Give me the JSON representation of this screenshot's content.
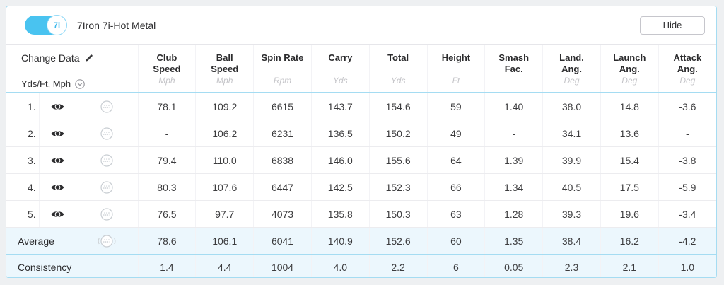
{
  "header": {
    "club_label": "7i",
    "title": "7Iron 7i-Hot Metal",
    "hide_button": "Hide"
  },
  "table": {
    "change_data_label": "Change Data",
    "units_label": "Yds/Ft, Mph",
    "columns": [
      {
        "label": "Club\nSpeed",
        "unit": "Mph"
      },
      {
        "label": "Ball\nSpeed",
        "unit": "Mph"
      },
      {
        "label": "Spin Rate",
        "unit": "Rpm"
      },
      {
        "label": "Carry",
        "unit": "Yds"
      },
      {
        "label": "Total",
        "unit": "Yds"
      },
      {
        "label": "Height",
        "unit": "Ft"
      },
      {
        "label": "Smash\nFac.",
        "unit": ""
      },
      {
        "label": "Land.\nAng.",
        "unit": "Deg"
      },
      {
        "label": "Launch\nAng.",
        "unit": "Deg"
      },
      {
        "label": "Attack\nAng.",
        "unit": "Deg"
      }
    ],
    "rows": [
      {
        "num": "1.",
        "values": [
          "78.1",
          "109.2",
          "6615",
          "143.7",
          "154.6",
          "59",
          "1.40",
          "38.0",
          "14.8",
          "-3.6"
        ]
      },
      {
        "num": "2.",
        "values": [
          "-",
          "106.2",
          "6231",
          "136.5",
          "150.2",
          "49",
          "-",
          "34.1",
          "13.6",
          "-"
        ]
      },
      {
        "num": "3.",
        "values": [
          "79.4",
          "110.0",
          "6838",
          "146.0",
          "155.6",
          "64",
          "1.39",
          "39.9",
          "15.4",
          "-3.8"
        ]
      },
      {
        "num": "4.",
        "values": [
          "80.3",
          "107.6",
          "6447",
          "142.5",
          "152.3",
          "66",
          "1.34",
          "40.5",
          "17.5",
          "-5.9"
        ]
      },
      {
        "num": "5.",
        "values": [
          "76.5",
          "97.7",
          "4073",
          "135.8",
          "150.3",
          "63",
          "1.28",
          "39.3",
          "19.6",
          "-3.4"
        ]
      }
    ],
    "average": {
      "label": "Average",
      "values": [
        "78.6",
        "106.1",
        "6041",
        "140.9",
        "152.6",
        "60",
        "1.35",
        "38.4",
        "16.2",
        "-4.2"
      ]
    },
    "consistency": {
      "label": "Consistency",
      "values": [
        "1.4",
        "4.4",
        "1004",
        "4.0",
        "2.2",
        "6",
        "0.05",
        "2.3",
        "2.1",
        "1.0"
      ]
    }
  },
  "colors": {
    "accent_blue": "#49c3f0",
    "highlight_row": "#ecf7fd",
    "card_border": "#a5dcf2"
  }
}
